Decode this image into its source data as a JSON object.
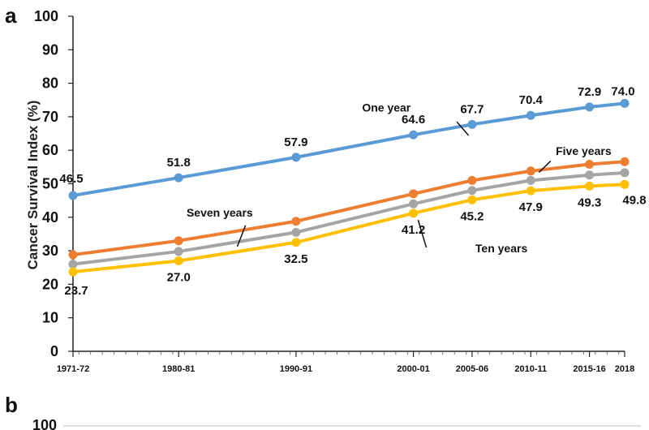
{
  "panels": {
    "a": "a",
    "b": "b",
    "b_ytick_top": "100"
  },
  "chart_data": {
    "type": "line",
    "title": "",
    "xlabel": "",
    "ylabel": "Cancer Survival Index (%)",
    "ylim": [
      0,
      100
    ],
    "yticks": [
      0,
      10,
      20,
      30,
      40,
      50,
      60,
      70,
      80,
      90,
      100
    ],
    "categories": [
      "1971-72",
      "1980-81",
      "1990-91",
      "2000-01",
      "2005-06",
      "2010-11",
      "2015-16",
      "2018"
    ],
    "x": [
      1971.5,
      1980.5,
      1990.5,
      2000.5,
      2005.5,
      2010.5,
      2015.5,
      2018.5
    ],
    "series": [
      {
        "name": "One year",
        "color": "#5b9bd5",
        "values": [
          46.5,
          51.8,
          57.9,
          64.6,
          67.7,
          70.4,
          72.9,
          74.0
        ],
        "labels": [
          "46.5",
          "51.8",
          "57.9",
          "64.6",
          "67.7",
          "70.4",
          "72.9",
          "74.0"
        ]
      },
      {
        "name": "Five years",
        "color": "#ed7d31",
        "values": [
          28.8,
          33.0,
          38.8,
          47.0,
          51.0,
          53.8,
          55.8,
          56.6
        ]
      },
      {
        "name": "Seven years",
        "color": "#a5a5a5",
        "values": [
          26.0,
          29.8,
          35.5,
          44.0,
          48.0,
          51.0,
          52.6,
          53.3
        ]
      },
      {
        "name": "Ten years",
        "color": "#ffc000",
        "values": [
          23.7,
          27.0,
          32.5,
          41.2,
          45.2,
          47.9,
          49.3,
          49.8
        ],
        "labels": [
          "23.7",
          "27.0",
          "32.5",
          "41.2",
          "45.2",
          "47.9",
          "49.3",
          "49.8"
        ]
      }
    ]
  }
}
